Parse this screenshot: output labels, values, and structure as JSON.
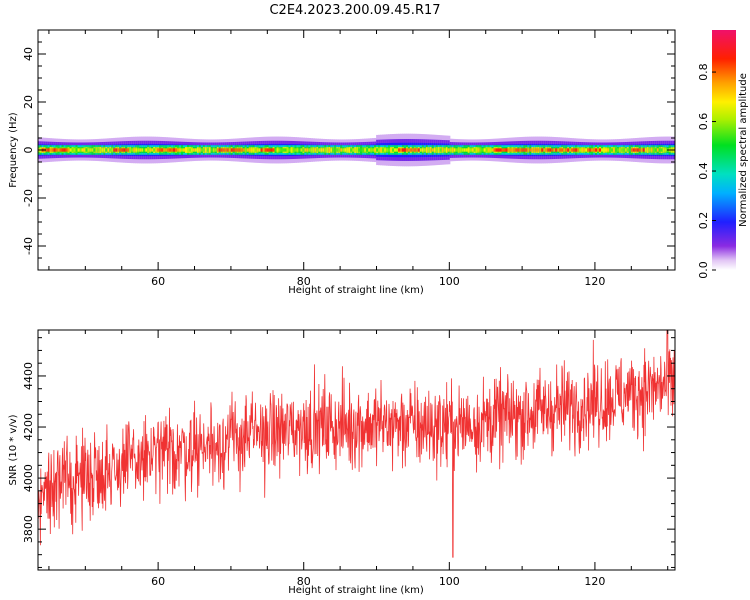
{
  "title": "C2E4.2023.200.09.45.R17",
  "colors": {
    "snr_line": "#f03232",
    "axis": "#000000"
  },
  "chart_data": [
    {
      "type": "heatmap",
      "xlabel": "Height of straight line (km)",
      "ylabel": "Frequency (Hz)",
      "xlim": [
        43.5,
        131
      ],
      "ylim": [
        -50,
        50
      ],
      "xticks": [
        60,
        80,
        100,
        120
      ],
      "yticks": [
        -40,
        -20,
        0,
        20,
        40
      ],
      "colorbar": {
        "label": "Normalized spectral amplitude",
        "range": [
          0,
          0.97
        ],
        "ticks": [
          0.0,
          0.2,
          0.4,
          0.6,
          0.8
        ],
        "tick_labels": [
          "0.0",
          "0.2",
          "0.4",
          "0.6",
          "0.8"
        ],
        "colormap": "rainbow"
      },
      "band": {
        "center_hz": 0,
        "edge_amplitude": 0.1,
        "halo_halfwidth_hz": 3.5,
        "core_halfwidth_hz": 1.5,
        "description": "narrow spectral band centred on 0 Hz across all heights"
      },
      "peak_regions_km": [
        [
          44,
          48
        ],
        [
          54,
          56
        ],
        [
          60,
          63
        ],
        [
          68,
          72
        ],
        [
          74,
          76
        ],
        [
          93,
          96
        ],
        [
          106,
          118
        ],
        [
          119,
          121
        ],
        [
          125,
          127
        ]
      ],
      "peak_amplitude": 0.9
    },
    {
      "type": "line",
      "xlabel": "Height of straight line (km)",
      "ylabel": "SNR (10 * v/v)",
      "xlim": [
        43.5,
        131
      ],
      "ylim": [
        3640,
        4580
      ],
      "xticks": [
        60,
        80,
        100,
        120
      ],
      "yticks": [
        3800,
        4000,
        4200,
        4400
      ],
      "series": [
        {
          "trend_x": [
            43.5,
            50,
            60,
            70,
            80,
            90,
            100,
            110,
            120,
            131
          ],
          "trend_y": [
            3940,
            4010,
            4090,
            4150,
            4200,
            4210,
            4200,
            4250,
            4300,
            4370
          ],
          "noise_amplitude": 130,
          "samples": 1600,
          "min_point": {
            "x": 100.5,
            "y": 3690
          },
          "max_point": {
            "x": 130,
            "y": 4580
          }
        }
      ]
    }
  ]
}
